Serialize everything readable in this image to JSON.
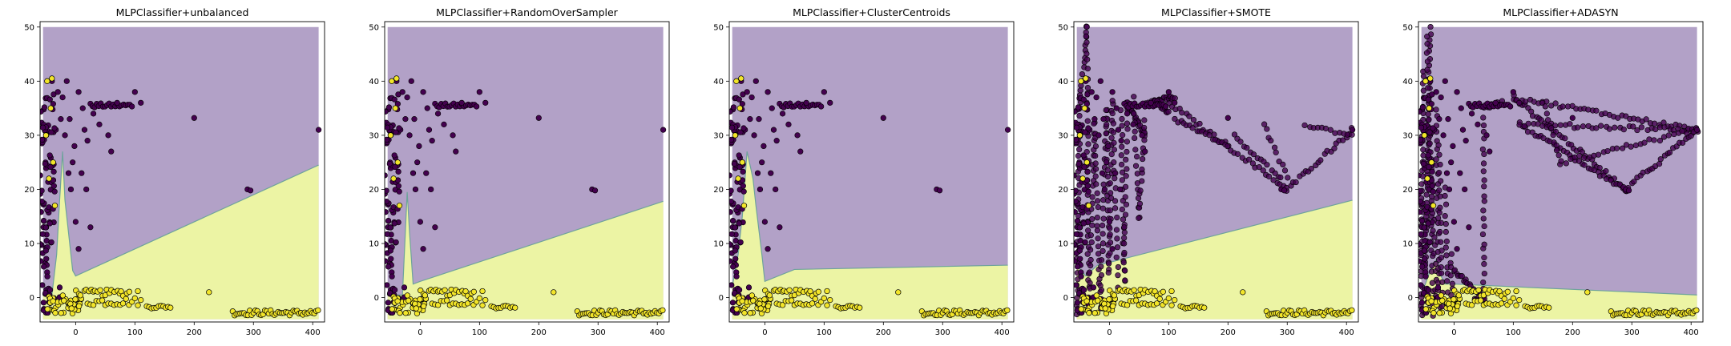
{
  "chart_data": {
    "type": "scatter",
    "subplot_layout": "1x5",
    "xlim": [
      -60,
      420
    ],
    "ylim": [
      -4.5,
      51
    ],
    "xticks": [
      0,
      100,
      200,
      300,
      400
    ],
    "yticks": [
      0,
      10,
      20,
      30,
      40,
      50
    ],
    "colors": {
      "region_majority": "#b2a1c7",
      "region_minority": "#ecf4a4",
      "boundary": "#6fa39c",
      "point_majority": "#44014f",
      "point_minority": "#f2e52a",
      "point_edge": "#000000"
    },
    "panels": [
      {
        "title": "MLPClassifier+unbalanced",
        "boundary": [
          [
            -60,
            0.5
          ],
          [
            -40,
            0.5
          ],
          [
            -32,
            8
          ],
          [
            -27,
            18
          ],
          [
            -22,
            27
          ],
          [
            -18,
            18
          ],
          [
            -5,
            5
          ],
          [
            0,
            4
          ],
          [
            410,
            24.5
          ]
        ],
        "extra_majority": []
      },
      {
        "title": "MLPClassifier+RandomOverSampler",
        "boundary": [
          [
            -60,
            0.5
          ],
          [
            -30,
            0.5
          ],
          [
            -22,
            19.5
          ],
          [
            -18,
            12
          ],
          [
            -12,
            2.5
          ],
          [
            0,
            3
          ],
          [
            410,
            17.8
          ]
        ],
        "extra_majority": []
      },
      {
        "title": "MLPClassifier+ClusterCentroids",
        "boundary": [
          [
            -60,
            2
          ],
          [
            -45,
            8
          ],
          [
            -38,
            15
          ],
          [
            -30,
            27
          ],
          [
            -20,
            22
          ],
          [
            -15,
            17
          ],
          [
            -5,
            8
          ],
          [
            0,
            3
          ],
          [
            50,
            5.2
          ],
          [
            410,
            6
          ]
        ],
        "extra_majority": [
          {
            "from": [
              -55,
              5
            ],
            "to": [
              -40,
              48
            ],
            "n": 0
          },
          {
            "from": [
              0,
              0
            ],
            "to": [
              0,
              0
            ],
            "n": 0
          }
        ]
      },
      {
        "title": "MLPClassifier+SMOTE",
        "boundary": [
          [
            -60,
            6
          ],
          [
            -40,
            4
          ],
          [
            -20,
            6
          ],
          [
            0,
            6.5
          ],
          [
            410,
            18
          ]
        ],
        "extra_majority": [
          {
            "from": [
              -55,
              -3
            ],
            "to": [
              -50,
              35
            ],
            "n": 30
          },
          {
            "from": [
              -50,
              35
            ],
            "to": [
              -38,
              50
            ],
            "n": 15
          },
          {
            "from": [
              -38,
              50
            ],
            "to": [
              -35,
              -3
            ],
            "n": 35
          },
          {
            "from": [
              -35,
              -3
            ],
            "to": [
              -25,
              32
            ],
            "n": 25
          },
          {
            "from": [
              -25,
              32
            ],
            "to": [
              -15,
              -2
            ],
            "n": 25
          },
          {
            "from": [
              -15,
              -2
            ],
            "to": [
              -5,
              35
            ],
            "n": 25
          },
          {
            "from": [
              -5,
              35
            ],
            "to": [
              0,
              5
            ],
            "n": 20
          },
          {
            "from": [
              0,
              5
            ],
            "to": [
              5,
              36
            ],
            "n": 20
          },
          {
            "from": [
              5,
              36
            ],
            "to": [
              15,
              2
            ],
            "n": 20
          },
          {
            "from": [
              20,
              35
            ],
            "to": [
              25,
              3
            ],
            "n": 20
          },
          {
            "from": [
              25,
              3
            ],
            "to": [
              30,
              36
            ],
            "n": 20
          },
          {
            "from": [
              30,
              36
            ],
            "to": [
              60,
              30
            ],
            "n": 20
          },
          {
            "from": [
              40,
              37
            ],
            "to": [
              50,
              15
            ],
            "n": 15
          },
          {
            "from": [
              50,
              15
            ],
            "to": [
              60,
              33
            ],
            "n": 15
          },
          {
            "from": [
              60,
              36
            ],
            "to": [
              110,
              37
            ],
            "n": 25
          },
          {
            "from": [
              80,
              36
            ],
            "to": [
              100,
              34
            ],
            "n": 10
          },
          {
            "from": [
              100,
              36
            ],
            "to": [
              300,
              20
            ],
            "n": 35
          },
          {
            "from": [
              110,
              33
            ],
            "to": [
              200,
              28
            ],
            "n": 18
          },
          {
            "from": [
              300,
              20
            ],
            "to": [
              410,
              31
            ],
            "n": 22
          },
          {
            "from": [
              210,
              30
            ],
            "to": [
              290,
              22
            ],
            "n": 15
          },
          {
            "from": [
              260,
              32
            ],
            "to": [
              300,
              22
            ],
            "n": 10
          },
          {
            "from": [
              330,
              32
            ],
            "to": [
              410,
              30
            ],
            "n": 12
          }
        ]
      },
      {
        "title": "MLPClassifier+ADASYN",
        "boundary": [
          [
            -60,
            0.5
          ],
          [
            -40,
            5
          ],
          [
            -30,
            7
          ],
          [
            -22,
            4
          ],
          [
            -15,
            2.5
          ],
          [
            0,
            2.5
          ],
          [
            410,
            0.5
          ]
        ],
        "extra_majority": [
          {
            "from": [
              -55,
              -3
            ],
            "to": [
              -52,
              42
            ],
            "n": 35
          },
          {
            "from": [
              -48,
              5
            ],
            "to": [
              -40,
              50
            ],
            "n": 40
          },
          {
            "from": [
              -45,
              48
            ],
            "to": [
              -35,
              -3
            ],
            "n": 35
          },
          {
            "from": [
              -40,
              30
            ],
            "to": [
              -30,
              0
            ],
            "n": 20
          },
          {
            "from": [
              -30,
              35
            ],
            "to": [
              -25,
              -2
            ],
            "n": 25
          },
          {
            "from": [
              -25,
              28
            ],
            "to": [
              -20,
              -2
            ],
            "n": 20
          },
          {
            "from": [
              -15,
              20
            ],
            "to": [
              -10,
              -2
            ],
            "n": 15
          },
          {
            "from": [
              -5,
              8
            ],
            "to": [
              -3,
              -1
            ],
            "n": 8
          },
          {
            "from": [
              0,
              5
            ],
            "to": [
              50,
              0
            ],
            "n": 20
          },
          {
            "from": [
              35,
              0
            ],
            "to": [
              50,
              0
            ],
            "n": 8
          },
          {
            "from": [
              50,
              0
            ],
            "to": [
              50,
              35
            ],
            "n": 25
          },
          {
            "from": [
              50,
              35
            ],
            "to": [
              80,
              36
            ],
            "n": 10
          },
          {
            "from": [
              100,
              37
            ],
            "to": [
              290,
              20
            ],
            "n": 40
          },
          {
            "from": [
              100,
              37
            ],
            "to": [
              410,
              31
            ],
            "n": 45
          },
          {
            "from": [
              110,
              32
            ],
            "to": [
              290,
              20
            ],
            "n": 35
          },
          {
            "from": [
              110,
              32
            ],
            "to": [
              410,
              31
            ],
            "n": 40
          },
          {
            "from": [
              150,
              36
            ],
            "to": [
              180,
              25
            ],
            "n": 12
          },
          {
            "from": [
              180,
              25
            ],
            "to": [
              410,
              31
            ],
            "n": 30
          },
          {
            "from": [
              290,
              20
            ],
            "to": [
              410,
              31
            ],
            "n": 25
          }
        ]
      }
    ]
  }
}
